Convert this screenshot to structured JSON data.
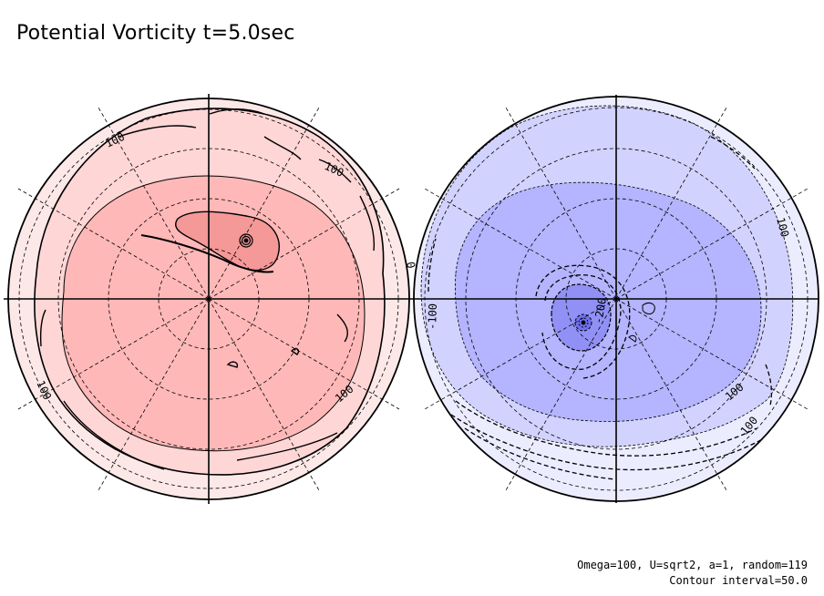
{
  "title": "Potential Vorticity t=5.0sec",
  "footer": {
    "line1": "Omega=100, U=sqrt2, a=1, random=119",
    "line2": "Contour interval=50.0"
  },
  "colors": {
    "pos_outer": "#fde8e8",
    "pos_mid": "#ffd6d6",
    "pos_inner": "#ffb8b8",
    "pos_core": "#f49898",
    "neg_outer": "#ececff",
    "neg_mid": "#d2d2ff",
    "neg_inner": "#b4b4ff",
    "neg_core": "#7070f0"
  },
  "hemispheres": [
    {
      "name": "north",
      "labels": [
        "100",
        "100",
        "100",
        "100",
        "0"
      ]
    },
    {
      "name": "south",
      "labels": [
        "100",
        "-100",
        "-200",
        "100",
        "100"
      ]
    }
  ]
}
